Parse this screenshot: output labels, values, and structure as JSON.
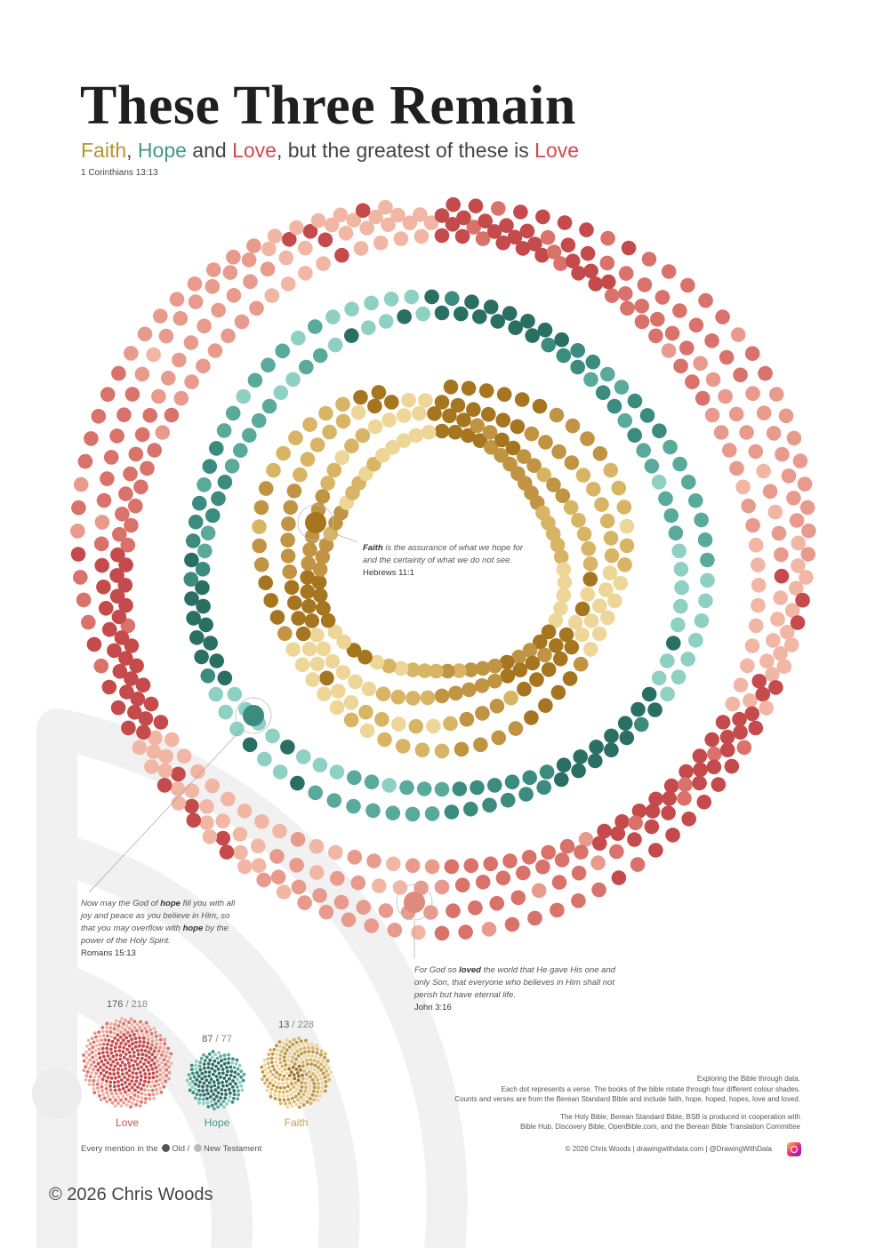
{
  "title": "These Three Remain",
  "subtitle": {
    "faith": "Faith",
    "sep1": ", ",
    "hope": "Hope",
    "and": " and ",
    "love": "Love",
    "rest": ", but the greatest of these is ",
    "love2": "Love"
  },
  "reference": "1 Corinthians 13:13",
  "quotes": {
    "faith": {
      "text_pre": "",
      "keyword": "Faith",
      "text_post": " is the assurance of what we hope for and the certainty of what we do not see.",
      "cite": "Hebrews 11:1"
    },
    "hope": {
      "text_pre": "Now may the God of ",
      "keyword": "hope",
      "text_mid": " fill you with all joy and peace as you believe in Him, so that you may overflow with ",
      "keyword2": "hope",
      "text_post": " by the power of the Holy Spirit.",
      "cite": "Romans 15:13"
    },
    "love": {
      "text_pre": "For God so ",
      "keyword": "loved",
      "text_post": " the world that He gave His one and only Son, that everyone who believes in Him shall not perish but have eternal life.",
      "cite": "John 3:16"
    }
  },
  "chart_data": {
    "type": "radial dot rings",
    "description_unit": "Each dot represents a verse",
    "series": [
      {
        "name": "Love",
        "old": 176,
        "new": 218,
        "color": "#c9504f",
        "shades": [
          "#c44a4b",
          "#d9726a",
          "#e89a8d",
          "#f2b6a5"
        ]
      },
      {
        "name": "Hope",
        "old": 87,
        "new": 77,
        "color": "#3e9a8c",
        "shades": [
          "#2a6f64",
          "#3b8b7f",
          "#5aaa9c",
          "#8ed0c3"
        ]
      },
      {
        "name": "Faith",
        "old": 13,
        "new": 228,
        "color": "#c9a24a",
        "shades": [
          "#a6751f",
          "#c09442",
          "#d8b564",
          "#eed698"
        ]
      }
    ]
  },
  "summary": {
    "love": {
      "old": "176",
      "new": "218",
      "label": "Love"
    },
    "hope": {
      "old": "87",
      "new": "77",
      "label": "Hope"
    },
    "faith": {
      "old": "13",
      "new": "228",
      "label": "Faith"
    },
    "slash": " / "
  },
  "legend": {
    "prefix": "Every mention in the ",
    "old": "Old",
    "sep": " / ",
    "new": "New Testament",
    "old_color": "#555555",
    "new_color": "#bbbbbb"
  },
  "notes": {
    "line1": "Exploring the Bible through data.",
    "line2": "Each dot represents a verse.  The books of the bible rotate through four different colour shades.",
    "line3": "Counts and verses are from the Berean Standard Bible and include faith, hope, hoped, hopes, love and loved.",
    "line4": "The Holy Bible, Berean Standard Bible, BSB is produced in cooperation with",
    "line5": "Bible Hub, Discovery Bible, OpenBible.com, and the Berean Bible Translation Committee"
  },
  "footer": {
    "links": "© 2026 Chris Woods  |  drawingwithdata.com  |  @DrawingWithData",
    "copyright": "© 2026 Chris Woods"
  }
}
